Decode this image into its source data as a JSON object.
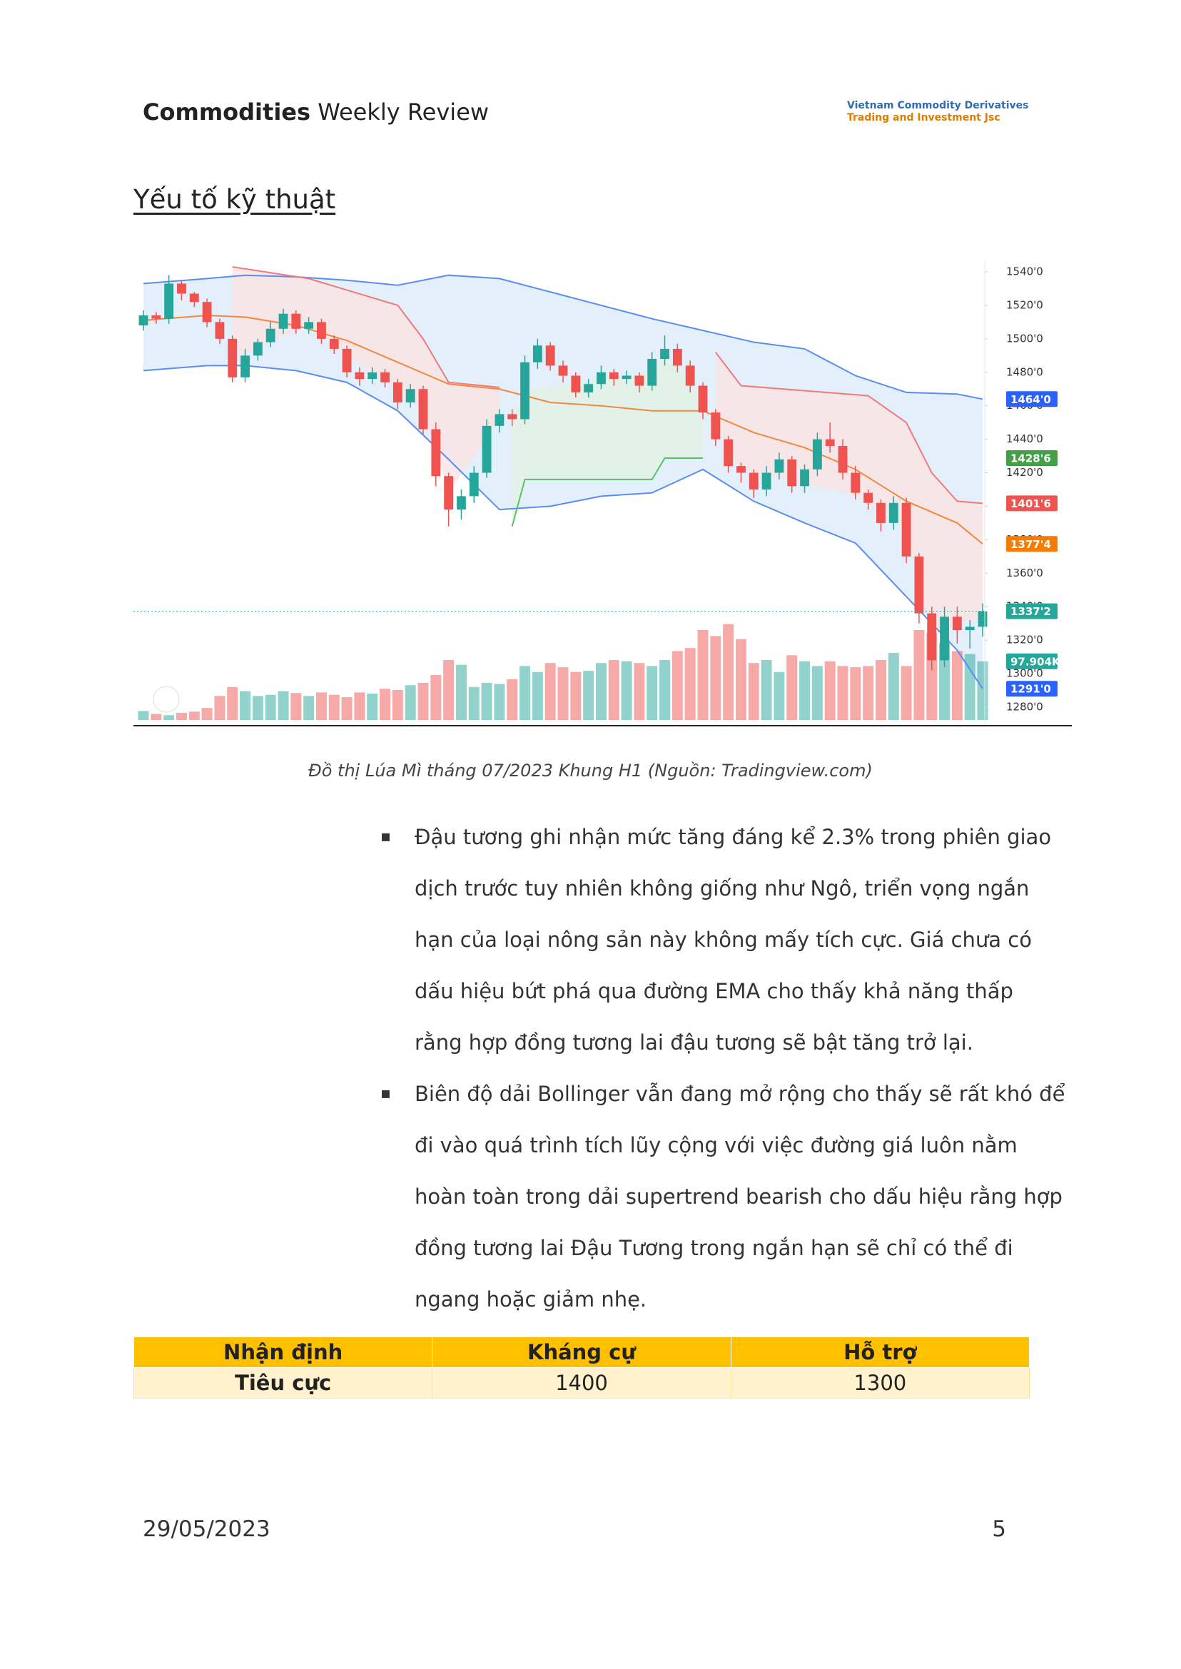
{
  "header": {
    "title_bold": "Commodities",
    "title_rest": "Weekly Review",
    "logo_line1": "Vietnam Commodity Derivatives",
    "logo_line2": "Trading and Investment Jsc"
  },
  "section_title": "Yếu tố kỹ thuật",
  "chart_data": {
    "type": "candlestick",
    "open": [
      1508,
      1514,
      1512,
      1533,
      1527,
      1522,
      1510,
      1500,
      1477,
      1490,
      1498,
      1506,
      1515,
      1506,
      1510,
      1500,
      1494,
      1480,
      1476,
      1480,
      1474,
      1462,
      1470,
      1446,
      1418,
      1398,
      1406,
      1420,
      1448,
      1455,
      1452,
      1486,
      1496,
      1484,
      1478,
      1468,
      1473,
      1480,
      1476,
      1478,
      1472,
      1488,
      1494,
      1484,
      1472,
      1456,
      1440,
      1424,
      1420,
      1410,
      1420,
      1428,
      1412,
      1422,
      1440,
      1436,
      1420,
      1408,
      1402,
      1390,
      1402,
      1370,
      1336,
      1308,
      1334,
      1326,
      1328
    ],
    "high": [
      1517,
      1516,
      1538,
      1535,
      1528,
      1524,
      1512,
      1502,
      1494,
      1500,
      1510,
      1518,
      1517,
      1513,
      1512,
      1502,
      1496,
      1483,
      1483,
      1482,
      1476,
      1473,
      1472,
      1450,
      1420,
      1410,
      1424,
      1452,
      1458,
      1458,
      1490,
      1500,
      1498,
      1487,
      1480,
      1476,
      1484,
      1482,
      1481,
      1480,
      1492,
      1502,
      1497,
      1487,
      1474,
      1458,
      1442,
      1426,
      1422,
      1424,
      1432,
      1430,
      1425,
      1444,
      1450,
      1440,
      1424,
      1410,
      1404,
      1406,
      1405,
      1372,
      1340,
      1340,
      1340,
      1332,
      1342
    ],
    "low": [
      1505,
      1509,
      1509,
      1523,
      1519,
      1507,
      1497,
      1474,
      1474,
      1487,
      1495,
      1503,
      1503,
      1503,
      1497,
      1491,
      1477,
      1472,
      1473,
      1471,
      1458,
      1459,
      1443,
      1412,
      1388,
      1392,
      1402,
      1417,
      1444,
      1448,
      1449,
      1482,
      1481,
      1474,
      1465,
      1465,
      1470,
      1472,
      1473,
      1468,
      1469,
      1484,
      1480,
      1468,
      1452,
      1436,
      1420,
      1414,
      1405,
      1406,
      1416,
      1408,
      1408,
      1418,
      1432,
      1416,
      1404,
      1398,
      1385,
      1386,
      1366,
      1330,
      1302,
      1304,
      1318,
      1315,
      1322
    ],
    "close": [
      1514,
      1512,
      1533,
      1527,
      1522,
      1510,
      1500,
      1477,
      1490,
      1498,
      1506,
      1515,
      1506,
      1510,
      1500,
      1494,
      1480,
      1476,
      1480,
      1474,
      1462,
      1470,
      1446,
      1418,
      1398,
      1406,
      1420,
      1448,
      1455,
      1452,
      1486,
      1496,
      1484,
      1478,
      1468,
      1473,
      1480,
      1476,
      1478,
      1472,
      1488,
      1494,
      1484,
      1472,
      1456,
      1440,
      1424,
      1420,
      1410,
      1420,
      1428,
      1412,
      1422,
      1440,
      1436,
      1420,
      1408,
      1402,
      1390,
      1402,
      1370,
      1336,
      1308,
      1334,
      1326,
      1328,
      1337.25
    ],
    "volume": [
      15000,
      10000,
      8000,
      12000,
      14000,
      20000,
      40000,
      55000,
      48000,
      40000,
      42000,
      48000,
      45000,
      40000,
      46000,
      42000,
      38000,
      46000,
      44000,
      52000,
      50000,
      58000,
      62000,
      75000,
      100000,
      92000,
      55000,
      62000,
      60000,
      68000,
      90000,
      80000,
      95000,
      88000,
      80000,
      82000,
      95000,
      100000,
      98000,
      95000,
      90000,
      100000,
      115000,
      120000,
      150000,
      140000,
      160000,
      135000,
      95000,
      100000,
      80000,
      108000,
      98000,
      90000,
      98000,
      90000,
      88000,
      90000,
      100000,
      112000,
      90000,
      150000,
      145000,
      128000,
      115000,
      110000,
      97904
    ],
    "up_color": "#26a69a",
    "down_color": "#ef5350",
    "ylim": [
      1280,
      1540
    ],
    "volume_lim": [
      0,
      200000
    ],
    "yticks": [
      {
        "value": 1540,
        "label": "1540'0"
      },
      {
        "value": 1520,
        "label": "1520'0"
      },
      {
        "value": 1500,
        "label": "1500'0"
      },
      {
        "value": 1480,
        "label": "1480'0"
      },
      {
        "value": 1460,
        "label": "1460'0"
      },
      {
        "value": 1440,
        "label": "1440'0"
      },
      {
        "value": 1420,
        "label": "1420'0"
      },
      {
        "value": 1400,
        "label": "1400'0"
      },
      {
        "value": 1380,
        "label": "1380'0"
      },
      {
        "value": 1360,
        "label": "1360'0"
      },
      {
        "value": 1340,
        "label": "1340'0"
      },
      {
        "value": 1320,
        "label": "1320'0"
      },
      {
        "value": 1300,
        "label": "1300'0"
      },
      {
        "value": 1280,
        "label": "1280'0"
      }
    ],
    "band": {
      "color": "#5b8def",
      "fill": "#e3effa",
      "x": [
        0,
        5,
        8,
        12,
        16,
        20,
        24,
        28,
        32,
        36,
        40,
        44,
        48,
        52,
        56,
        60,
        64,
        66
      ],
      "upper": [
        1533,
        1536,
        1538,
        1537,
        1535,
        1532,
        1538,
        1536,
        1528,
        1520,
        1512,
        1505,
        1498,
        1494,
        1478,
        1468,
        1467,
        1464
      ],
      "lower": [
        1481,
        1484,
        1484,
        1481,
        1474,
        1457,
        1428,
        1398,
        1400,
        1406,
        1408,
        1422,
        1403,
        1390,
        1378,
        1346,
        1314,
        1291
      ]
    },
    "overlays": [
      {
        "color": "#f0883e",
        "x": [
          0,
          5,
          8,
          12,
          16,
          20,
          24,
          28,
          32,
          36,
          40,
          44,
          48,
          52,
          56,
          60,
          64,
          66
        ],
        "values": [
          1511,
          1514,
          1513,
          1508,
          1499,
          1486,
          1473,
          1470,
          1462,
          1460,
          1457,
          1457,
          1444,
          1435,
          1422,
          1403,
          1390,
          1377.5
        ]
      },
      {
        "color": "#f07a7a",
        "fill": "#fbe3e3",
        "x": [
          7,
          13,
          20,
          22,
          24,
          28
        ],
        "values": [
          1543,
          1536,
          1520,
          1500,
          1474,
          1471
        ]
      },
      {
        "color": "#5cbf6a",
        "fill": "#e1f2e3",
        "x": [
          29,
          30,
          40,
          41,
          44
        ],
        "values": [
          1388,
          1416,
          1416,
          1428.75,
          1428.75
        ]
      },
      {
        "color": "#f07a7a",
        "fill": "#fbe3e3",
        "x": [
          45,
          47,
          57,
          60,
          62,
          64,
          66
        ],
        "values": [
          1492,
          1472,
          1466,
          1450,
          1420,
          1403,
          1401.75
        ]
      }
    ],
    "price_tags": [
      {
        "value": 1464,
        "label": "1464'0",
        "color": "#2962ff"
      },
      {
        "value": 1428.75,
        "label": "1428'6",
        "color": "#43a047"
      },
      {
        "value": 1401.75,
        "label": "1401'6",
        "color": "#ef5350"
      },
      {
        "value": 1377.5,
        "label": "1377'4",
        "color": "#f57c00"
      },
      {
        "value": 1337.25,
        "label": "1337'2",
        "color": "#26a69a"
      },
      {
        "value": 97904,
        "label": "97.904K",
        "color": "#26a69a",
        "axis": "volume"
      },
      {
        "value": 1291,
        "label": "1291'0",
        "color": "#2962ff"
      }
    ]
  },
  "caption": "Đồ thị Lúa Mì tháng 07/2023 Khung H1 (Nguồn: Tradingview.com)",
  "bullets": [
    "Đậu tương ghi nhận mức tăng đáng kể 2.3% trong phiên giao dịch trước tuy nhiên không giống như Ngô, triển vọng ngắn hạn của loại nông sản này không mấy tích cực. Giá chưa có dấu hiệu bứt phá qua đường EMA cho thấy khả năng thấp rằng hợp đồng tương lai đậu tương sẽ bật tăng trở lại.",
    "Biên độ dải Bollinger vẫn đang mở rộng cho thấy sẽ rất khó để đi vào quá trình tích lũy cộng với việc đường giá luôn nằm hoàn toàn trong dải supertrend bearish cho dấu hiệu rằng hợp đồng tương lai Đậu Tương trong ngắn hạn sẽ chỉ có thể đi ngang hoặc giảm nhẹ."
  ],
  "table": {
    "header": [
      "Nhận định",
      "Kháng cự",
      "Hỗ trợ"
    ],
    "rows": [
      [
        "Tiêu cực",
        1400,
        1300
      ]
    ]
  },
  "footer": {
    "date": "29/05/2023",
    "page": 5
  }
}
